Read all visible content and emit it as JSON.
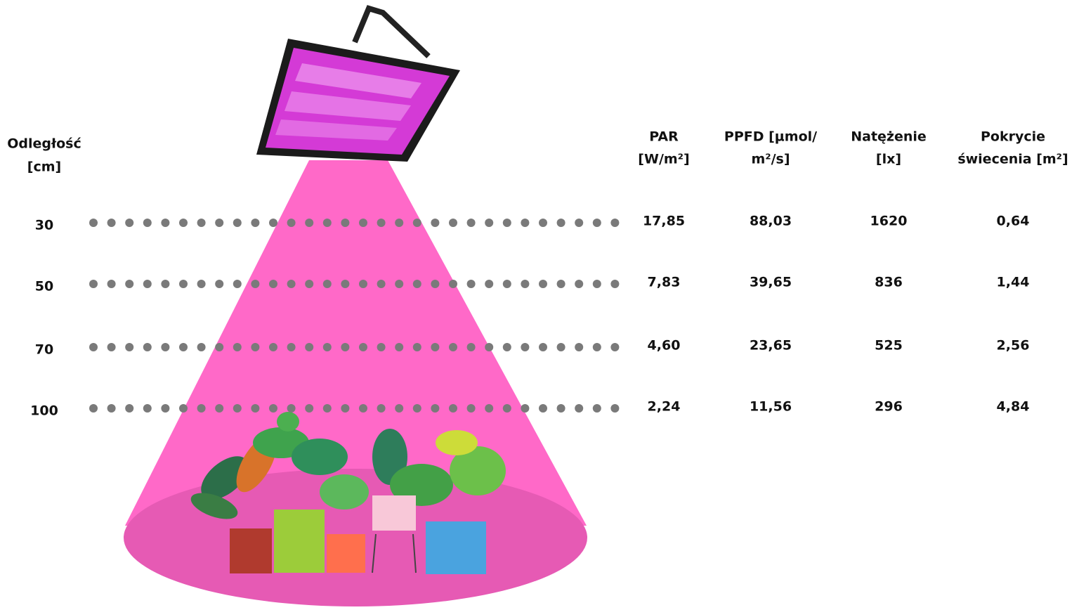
{
  "table": {
    "distance_header": [
      "Odległość",
      "[cm]"
    ],
    "headers": [
      [
        "PAR",
        "[W/m²]"
      ],
      [
        "PPFD [µmol/",
        "m²/s]"
      ],
      [
        "Natężenie",
        "[lx]"
      ],
      [
        "Pokrycie",
        "świecenia [m²]"
      ]
    ],
    "rows": [
      {
        "distance": "30",
        "values": [
          "17,85",
          "88,03",
          "1620",
          "0,64"
        ]
      },
      {
        "distance": "50",
        "values": [
          "7,83",
          "39,65",
          "836",
          "1,44"
        ]
      },
      {
        "distance": "70",
        "values": [
          "4,60",
          "23,65",
          "525",
          "2,56"
        ]
      },
      {
        "distance": "100",
        "values": [
          "2,24",
          "11,56",
          "296",
          "4,84"
        ]
      }
    ]
  }
}
